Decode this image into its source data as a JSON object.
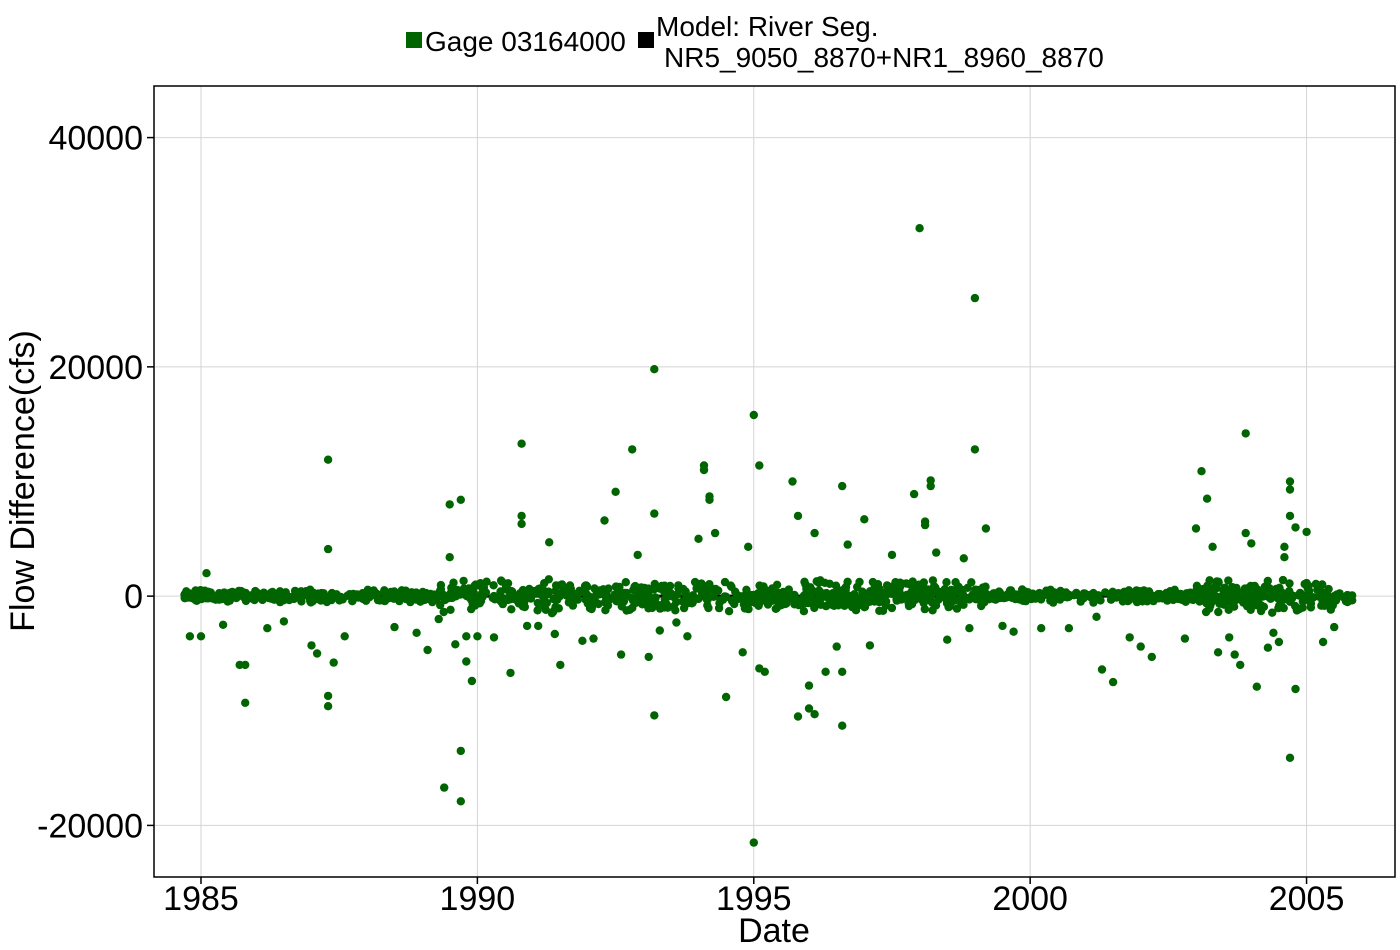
{
  "chart_data": {
    "type": "scatter",
    "title": "",
    "xlabel": "Date",
    "ylabel": "Flow Difference(cfs)",
    "xlim": [
      1984.15,
      2006.6
    ],
    "ylim": [
      -24500,
      44500
    ],
    "xticks": [
      1985,
      1990,
      1995,
      2000,
      2005
    ],
    "xtick_labels": [
      "1985",
      "1990",
      "1995",
      "2000",
      "2005"
    ],
    "yticks": [
      -20000,
      0,
      20000,
      40000
    ],
    "ytick_labels": [
      "-20000",
      "0",
      "20000",
      "40000"
    ],
    "grid": true,
    "legend_position": "top",
    "series": [
      {
        "name": "Gage 03164000",
        "color": "#006400",
        "marker": "circle",
        "x": [
          1984.8,
          1985.0,
          1985.1,
          1985.4,
          1985.7,
          1985.8,
          1985.8,
          1986.2,
          1986.5,
          1987.0,
          1987.1,
          1987.3,
          1987.3,
          1987.3,
          1987.3,
          1987.4,
          1987.6,
          1988.5,
          1988.9,
          1989.1,
          1989.3,
          1989.4,
          1989.5,
          1989.5,
          1989.6,
          1989.7,
          1989.7,
          1989.7,
          1989.8,
          1989.8,
          1989.9,
          1990.0,
          1990.3,
          1990.6,
          1990.8,
          1990.8,
          1990.8,
          1990.9,
          1991.1,
          1991.3,
          1991.4,
          1991.5,
          1991.9,
          1992.1,
          1992.3,
          1992.5,
          1992.6,
          1992.8,
          1992.9,
          1993.1,
          1993.2,
          1993.2,
          1993.2,
          1993.3,
          1993.6,
          1993.8,
          1994.0,
          1994.1,
          1994.1,
          1994.2,
          1994.2,
          1994.3,
          1994.5,
          1994.8,
          1994.9,
          1995.0,
          1995.0,
          1995.1,
          1995.1,
          1995.2,
          1995.7,
          1995.8,
          1995.8,
          1996.0,
          1996.0,
          1996.1,
          1996.1,
          1996.3,
          1996.5,
          1996.6,
          1996.6,
          1996.6,
          1996.7,
          1997.0,
          1997.1,
          1997.5,
          1997.9,
          1998.0,
          1998.1,
          1998.1,
          1998.2,
          1998.2,
          1998.3,
          1998.5,
          1998.8,
          1998.9,
          1999.0,
          1999.0,
          1999.2,
          1999.5,
          1999.7,
          2000.2,
          2000.7,
          2001.2,
          2001.3,
          2001.5,
          2001.8,
          2002.0,
          2002.2,
          2002.8,
          2003.0,
          2003.1,
          2003.2,
          2003.3,
          2003.4,
          2003.6,
          2003.7,
          2003.8,
          2003.9,
          2003.9,
          2004.0,
          2004.1,
          2004.3,
          2004.4,
          2004.5,
          2004.6,
          2004.6,
          2004.7,
          2004.7,
          2004.7,
          2004.7,
          2004.8,
          2004.8,
          2005.0,
          2005.3,
          2005.5
        ],
        "y": [
          -3500,
          -3500,
          2000,
          -2500,
          -6000,
          -9300,
          -6000,
          -2800,
          -2200,
          -4300,
          -5000,
          11900,
          -8700,
          -9600,
          4100,
          -5800,
          -3500,
          -2700,
          -3200,
          -4700,
          -2000,
          -16700,
          8000,
          3400,
          -4200,
          -17900,
          -13500,
          8400,
          -3500,
          -5700,
          -7400,
          -3500,
          -3600,
          -6700,
          13300,
          7000,
          6300,
          -2600,
          -2600,
          4700,
          -3300,
          -6000,
          -3900,
          -3700,
          6600,
          9100,
          -5100,
          12800,
          3600,
          -5300,
          19800,
          7200,
          -10400,
          -3000,
          -2300,
          -3500,
          5000,
          11000,
          11400,
          8400,
          8700,
          5500,
          -8800,
          -4900,
          4300,
          -21500,
          15800,
          11400,
          -6300,
          -6600,
          10000,
          7000,
          -10500,
          -9800,
          -7800,
          -10300,
          5500,
          -6600,
          -4400,
          9600,
          -11300,
          -6600,
          4500,
          6700,
          -4300,
          3600,
          8900,
          32100,
          6500,
          6200,
          9600,
          10100,
          3800,
          -3800,
          3300,
          -2800,
          26000,
          12800,
          5900,
          -2600,
          -3100,
          -2800,
          -2800,
          -1800,
          -6400,
          -7500,
          -3600,
          -4400,
          -5300,
          -3700,
          5900,
          10900,
          8500,
          4300,
          -4900,
          -3600,
          -5100,
          -6000,
          5500,
          14200,
          4600,
          -7900,
          -4500,
          -3200,
          -4000,
          3400,
          4300,
          -14100,
          10000,
          9300,
          7000,
          6000,
          -8100,
          5600,
          -4000,
          -2700
        ]
      },
      {
        "name": "Model: River Seg. NR5_9050_8870+NR1_8960_8870",
        "legend_lines": [
          "Model: River Seg.",
          "NR5_9050_8870+NR1_8960_8870"
        ],
        "color": "#000000",
        "marker": "line",
        "x": [
          1984.7,
          2005.85
        ],
        "y": [
          0,
          0
        ]
      }
    ]
  }
}
